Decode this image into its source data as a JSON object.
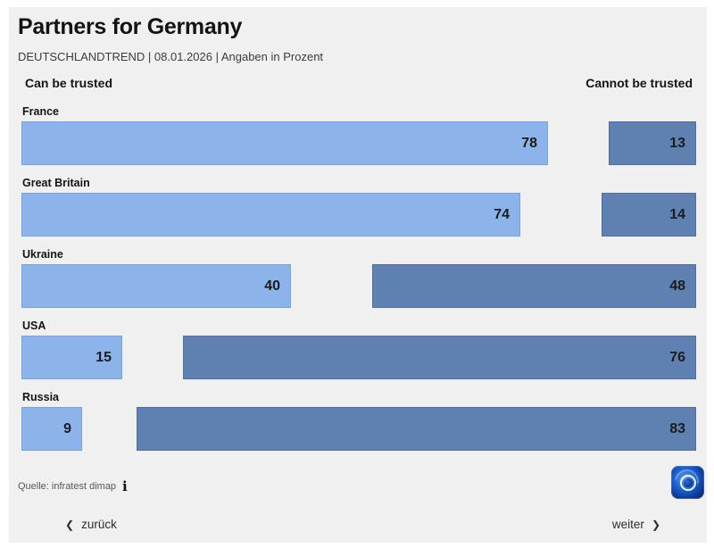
{
  "title": "Partners for Germany",
  "subtitle": "DEUTSCHLANDTREND | 08.01.2026 | Angaben in Prozent",
  "headers": {
    "left": "Can be trusted",
    "right": "Cannot be trusted"
  },
  "chart_data": {
    "type": "bar",
    "orientation": "horizontal",
    "diverging": true,
    "title": "Partners for Germany",
    "categories": [
      "France",
      "Great Britain",
      "Ukraine",
      "USA",
      "Russia"
    ],
    "series": [
      {
        "name": "Can be trusted",
        "align": "left",
        "color": "#8db4ea",
        "values": [
          78,
          74,
          40,
          15,
          9
        ]
      },
      {
        "name": "Cannot be trusted",
        "align": "right",
        "color": "#5f81b1",
        "values": [
          13,
          14,
          48,
          76,
          83
        ]
      }
    ],
    "unit": "percent",
    "xlim": [
      0,
      100
    ],
    "grid": false,
    "legend_position": "column-headers",
    "value_labels": "inside-end"
  },
  "footer": {
    "source": "Quelle: infratest dimap",
    "info_icon": "i"
  },
  "nav": {
    "back_icon": "❮",
    "back_label": "zurück",
    "next_label": "weiter",
    "next_icon": "❯"
  },
  "branding": {
    "logo": "tagesschau-app-icon"
  },
  "colors": {
    "page_background": "#ffffff",
    "panel_background": "#f0f0f0",
    "bar_left": "#8db4ea",
    "bar_right": "#5f81b1",
    "text": "#141414",
    "muted_text": "#575757",
    "logo_blue": "#0c3a96"
  }
}
